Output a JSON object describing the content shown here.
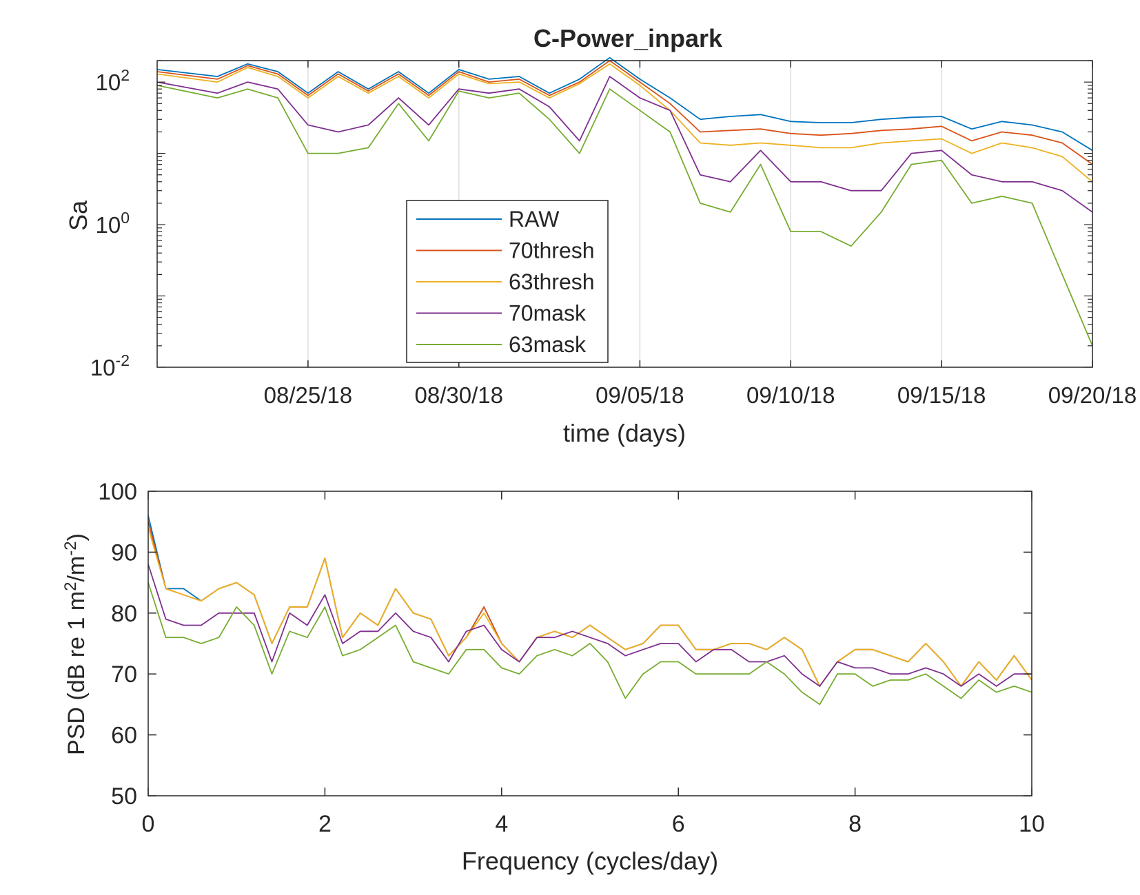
{
  "chart_data": [
    {
      "type": "line",
      "title": "C-Power_inpark",
      "xlabel": "time (days)",
      "ylabel": "Sa",
      "yscale": "log",
      "x_unit": "date (2018)",
      "xlim": [
        "08/20/18",
        "09/20/18"
      ],
      "ylim": [
        0.01,
        200
      ],
      "xticks": [
        {
          "date": "08/25/18",
          "label": "08/25/18"
        },
        {
          "date": "08/30/18",
          "label": "08/30/18"
        },
        {
          "date": "09/05/18",
          "label": "09/05/18"
        },
        {
          "date": "09/10/18",
          "label": "09/10/18"
        },
        {
          "date": "09/15/18",
          "label": "09/15/18"
        },
        {
          "date": "09/20/18",
          "label": "09/20/18"
        }
      ],
      "yticks": [
        {
          "value": 0.01,
          "base": "10",
          "exp": "-2"
        },
        {
          "value": 1,
          "base": "10",
          "exp": "0"
        },
        {
          "value": 100,
          "base": "10",
          "exp": "2"
        }
      ],
      "grid": "x-only",
      "legend_position": "lower-center",
      "x": [
        "08/20/18",
        "08/22/18",
        "08/23/18",
        "08/24/18",
        "08/25/18",
        "08/26/18",
        "08/27/18",
        "08/28/18",
        "08/29/18",
        "08/30/18",
        "08/31/18",
        "09/01/18",
        "09/02/18",
        "09/03/18",
        "09/04/18",
        "09/05/18",
        "09/06/18",
        "09/07/18",
        "09/08/18",
        "09/09/18",
        "09/10/18",
        "09/11/18",
        "09/12/18",
        "09/13/18",
        "09/14/18",
        "09/15/18",
        "09/16/18",
        "09/17/18",
        "09/18/18",
        "09/19/18",
        "09/20/18"
      ],
      "series": [
        {
          "name": "RAW",
          "color": "#0072BD",
          "values": [
            150,
            120,
            180,
            140,
            70,
            140,
            80,
            140,
            70,
            150,
            110,
            120,
            70,
            110,
            220,
            110,
            60,
            30,
            33,
            35,
            28,
            27,
            27,
            30,
            32,
            33,
            22,
            28,
            25,
            20,
            11
          ]
        },
        {
          "name": "70thresh",
          "color": "#D95319",
          "values": [
            140,
            110,
            170,
            130,
            65,
            130,
            75,
            130,
            65,
            140,
            100,
            110,
            65,
            100,
            200,
            100,
            50,
            20,
            21,
            22,
            19,
            18,
            19,
            21,
            22,
            24,
            15,
            20,
            18,
            14,
            7
          ]
        },
        {
          "name": "63thresh",
          "color": "#EDB120",
          "values": [
            130,
            100,
            160,
            120,
            60,
            120,
            70,
            120,
            60,
            130,
            95,
            100,
            60,
            95,
            180,
            90,
            40,
            14,
            13,
            14,
            13,
            12,
            12,
            14,
            15,
            16,
            10,
            14,
            12,
            9,
            4
          ]
        },
        {
          "name": "70mask",
          "color": "#7E2F8E",
          "values": [
            100,
            70,
            100,
            80,
            25,
            20,
            25,
            60,
            25,
            80,
            70,
            80,
            45,
            15,
            120,
            60,
            40,
            5,
            4,
            11,
            4,
            4,
            3,
            3,
            10,
            11,
            5,
            4,
            4,
            3,
            1.5
          ]
        },
        {
          "name": "63mask",
          "color": "#77AC30",
          "values": [
            90,
            60,
            80,
            60,
            10,
            10,
            12,
            50,
            15,
            75,
            60,
            70,
            30,
            10,
            80,
            40,
            20,
            2,
            1.5,
            7,
            0.8,
            0.8,
            0.5,
            1.5,
            7,
            8,
            2,
            2.5,
            2,
            0.2,
            0.02
          ]
        }
      ]
    },
    {
      "type": "line",
      "title": "",
      "xlabel": "Frequency (cycles/day)",
      "ylabel_main": "PSD (dB re 1 m",
      "ylabel_sup1": "2",
      "ylabel_mid": "/m",
      "ylabel_sup2": "-2",
      "ylabel_end": ")",
      "xlim": [
        0,
        10
      ],
      "ylim": [
        50,
        100
      ],
      "xticks": [
        0,
        2,
        4,
        6,
        8,
        10
      ],
      "yticks": [
        50,
        60,
        70,
        80,
        90,
        100
      ],
      "grid": "off",
      "x": [
        0,
        0.2,
        0.4,
        0.6,
        0.8,
        1.0,
        1.2,
        1.4,
        1.6,
        1.8,
        2.0,
        2.2,
        2.4,
        2.6,
        2.8,
        3.0,
        3.2,
        3.4,
        3.6,
        3.8,
        4.0,
        4.2,
        4.4,
        4.6,
        4.8,
        5.0,
        5.2,
        5.4,
        5.6,
        5.8,
        6.0,
        6.2,
        6.4,
        6.6,
        6.8,
        7.0,
        7.2,
        7.4,
        7.6,
        7.8,
        8.0,
        8.2,
        8.4,
        8.6,
        8.8,
        9.0,
        9.2,
        9.4,
        9.6,
        9.8,
        10.0
      ],
      "series": [
        {
          "name": "RAW",
          "color": "#0072BD",
          "values": [
            96,
            84,
            84,
            82,
            84,
            85,
            83,
            75,
            81,
            81,
            89,
            76,
            80,
            78,
            84,
            80,
            79,
            73,
            76,
            81,
            75,
            72,
            76,
            77,
            76,
            78,
            76,
            74,
            75,
            78,
            78,
            74,
            74,
            75,
            75,
            74,
            76,
            74,
            68,
            72,
            74,
            74,
            73,
            72,
            75,
            72,
            68,
            72,
            69,
            73,
            69
          ]
        },
        {
          "name": "70thresh",
          "color": "#D95319",
          "values": [
            95,
            84,
            83,
            82,
            84,
            85,
            83,
            75,
            81,
            81,
            89,
            76,
            80,
            78,
            84,
            80,
            79,
            73,
            76,
            81,
            75,
            72,
            76,
            77,
            76,
            78,
            76,
            74,
            75,
            78,
            78,
            74,
            74,
            75,
            75,
            74,
            76,
            74,
            68,
            72,
            74,
            74,
            73,
            72,
            75,
            72,
            68,
            72,
            69,
            73,
            69
          ]
        },
        {
          "name": "63thresh",
          "color": "#EDB120",
          "values": [
            94,
            84,
            83,
            82,
            84,
            85,
            83,
            75,
            81,
            81,
            89,
            76,
            80,
            78,
            84,
            80,
            79,
            73,
            76,
            80,
            75,
            72,
            76,
            77,
            76,
            78,
            76,
            74,
            75,
            78,
            78,
            74,
            74,
            75,
            75,
            74,
            76,
            74,
            68,
            72,
            74,
            74,
            73,
            72,
            75,
            72,
            68,
            72,
            69,
            73,
            69
          ]
        },
        {
          "name": "70mask",
          "color": "#7E2F8E",
          "values": [
            88,
            79,
            78,
            78,
            80,
            80,
            80,
            72,
            80,
            78,
            83,
            75,
            77,
            77,
            80,
            77,
            76,
            72,
            77,
            78,
            74,
            72,
            76,
            76,
            77,
            76,
            75,
            73,
            74,
            75,
            75,
            72,
            74,
            74,
            72,
            72,
            73,
            70,
            68,
            72,
            71,
            71,
            70,
            70,
            71,
            70,
            68,
            70,
            68,
            70,
            70
          ]
        },
        {
          "name": "63mask",
          "color": "#77AC30",
          "values": [
            85,
            76,
            76,
            75,
            76,
            81,
            78,
            70,
            77,
            76,
            81,
            73,
            74,
            76,
            78,
            72,
            71,
            70,
            74,
            74,
            71,
            70,
            73,
            74,
            73,
            75,
            72,
            66,
            70,
            72,
            72,
            70,
            70,
            70,
            70,
            72,
            70,
            67,
            65,
            70,
            70,
            68,
            69,
            69,
            70,
            68,
            66,
            69,
            67,
            68,
            67
          ]
        }
      ]
    }
  ]
}
